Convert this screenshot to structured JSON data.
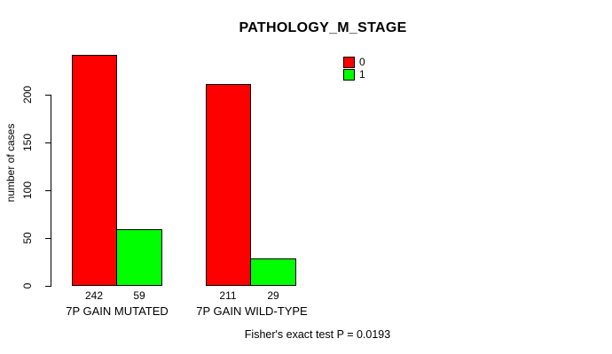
{
  "chart_data": {
    "type": "bar",
    "title": "PATHOLOGY_M_STAGE",
    "xlabel": "",
    "ylabel": "number of cases",
    "categories": [
      "7P GAIN MUTATED",
      "7P GAIN WILD-TYPE"
    ],
    "series": [
      {
        "name": "0",
        "color": "#FF0000",
        "values": [
          242,
          211
        ]
      },
      {
        "name": "1",
        "color": "#00FF00",
        "values": [
          59,
          29
        ]
      }
    ],
    "yticks": [
      "0",
      "50",
      "100",
      "150",
      "200"
    ],
    "ytick_values": [
      0,
      50,
      100,
      150,
      200
    ],
    "ylim": [
      0,
      250
    ],
    "grid": false,
    "legend_position": "top-center-right",
    "bar_border_color": "#000000",
    "annotation": "Fisher's exact test P = 0.0193"
  }
}
